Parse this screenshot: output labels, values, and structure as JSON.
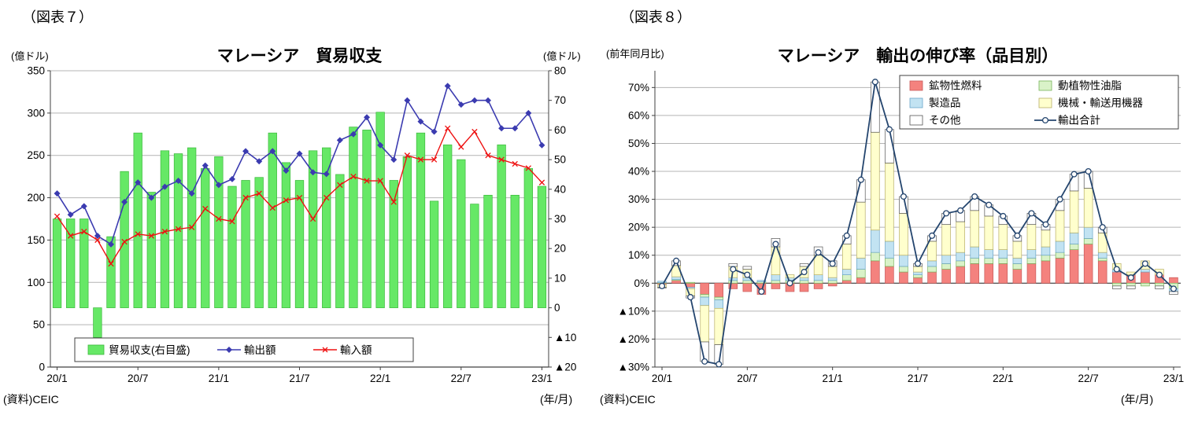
{
  "panels": [
    {
      "figure_label": "（図表７）",
      "left_axis_unit": "(億ドル)",
      "right_axis_unit": "(億ドル)",
      "x_axis_unit": "(年/月)",
      "source": "(資料)CEIC"
    },
    {
      "figure_label": "（図表８）",
      "y_axis_unit": "(前年同月比)",
      "x_axis_unit": "(年/月)",
      "source": "(資料)CEIC"
    }
  ],
  "chart_data": [
    {
      "id": "fig7",
      "type": "bar+line",
      "title": "マレーシア　貿易収支",
      "negative_prefix": "▲",
      "x": [
        "20/1",
        "20/2",
        "20/3",
        "20/4",
        "20/5",
        "20/6",
        "20/7",
        "20/8",
        "20/9",
        "20/10",
        "20/11",
        "20/12",
        "21/1",
        "21/2",
        "21/3",
        "21/4",
        "21/5",
        "21/6",
        "21/7",
        "21/8",
        "21/9",
        "21/10",
        "21/11",
        "21/12",
        "22/1",
        "22/2",
        "22/3",
        "22/4",
        "22/5",
        "22/6",
        "22/7",
        "22/8",
        "22/9",
        "22/10",
        "22/11",
        "22/12",
        "23/1"
      ],
      "x_ticks": [
        "20/1",
        "20/7",
        "21/1",
        "21/7",
        "22/1",
        "22/7",
        "23/1"
      ],
      "x_tick_idx": [
        0,
        6,
        12,
        18,
        24,
        30,
        36
      ],
      "left_ylim": [
        0,
        350
      ],
      "left_yticks": [
        0,
        50,
        100,
        150,
        200,
        250,
        300,
        350
      ],
      "right_ylim": [
        -20,
        80
      ],
      "right_yticks": [
        -20,
        -10,
        0,
        10,
        20,
        30,
        40,
        50,
        60,
        70,
        80
      ],
      "series": [
        {
          "key": "trade_balance",
          "name": "貿易収支(右目盛)",
          "type": "bar",
          "axis": "right",
          "fill": "#66e866",
          "stroke": "#3cb83c",
          "values": [
            30,
            30,
            30,
            -10,
            24,
            46,
            59,
            39,
            53,
            52,
            54,
            47,
            51,
            41,
            43,
            44,
            59,
            49,
            43,
            53,
            54,
            45,
            61,
            60,
            66,
            43,
            51,
            59,
            36,
            55,
            50,
            35,
            38,
            55,
            38,
            47,
            41
          ]
        },
        {
          "key": "exports",
          "name": "輸出額",
          "type": "line",
          "axis": "left",
          "color": "#3b3bb0",
          "marker": "diamond",
          "values": [
            205,
            180,
            190,
            155,
            145,
            195,
            218,
            200,
            213,
            220,
            205,
            238,
            215,
            222,
            255,
            243,
            255,
            232,
            252,
            230,
            228,
            268,
            275,
            295,
            262,
            245,
            315,
            290,
            278,
            332,
            310,
            315,
            315,
            282,
            282,
            300,
            262
          ]
        },
        {
          "key": "imports",
          "name": "輸入額",
          "type": "line",
          "axis": "left",
          "color": "#ee1111",
          "marker": "x",
          "values": [
            178,
            155,
            160,
            150,
            122,
            148,
            157,
            155,
            160,
            163,
            165,
            187,
            175,
            172,
            200,
            205,
            188,
            197,
            200,
            175,
            200,
            215,
            225,
            220,
            220,
            195,
            250,
            245,
            245,
            282,
            260,
            278,
            250,
            245,
            240,
            235,
            218
          ]
        }
      ]
    },
    {
      "id": "fig8",
      "type": "stacked-bar+line",
      "title": "マレーシア　輸出の伸び率（品目別）",
      "negative_prefix": "▲",
      "unit": "%",
      "x": [
        "20/1",
        "20/2",
        "20/3",
        "20/4",
        "20/5",
        "20/6",
        "20/7",
        "20/8",
        "20/9",
        "20/10",
        "20/11",
        "20/12",
        "21/1",
        "21/2",
        "21/3",
        "21/4",
        "21/5",
        "21/6",
        "21/7",
        "21/8",
        "21/9",
        "21/10",
        "21/11",
        "21/12",
        "22/1",
        "22/2",
        "22/3",
        "22/4",
        "22/5",
        "22/6",
        "22/7",
        "22/8",
        "22/9",
        "22/10",
        "22/11",
        "22/12",
        "23/1"
      ],
      "x_ticks": [
        "20/1",
        "20/7",
        "21/1",
        "21/7",
        "22/1",
        "22/7",
        "23/1"
      ],
      "x_tick_idx": [
        0,
        6,
        12,
        18,
        24,
        30,
        36
      ],
      "ylim": [
        -30,
        76
      ],
      "yticks": [
        -30,
        -20,
        -10,
        0,
        10,
        20,
        30,
        40,
        50,
        60,
        70
      ],
      "series": [
        {
          "key": "mineral_fuels",
          "name": "鉱物性燃料",
          "type": "bar",
          "fill": "#f4827e",
          "stroke": "#c85a5a",
          "values": [
            -0.5,
            1,
            -1.5,
            -4,
            -5,
            -2,
            -3,
            -4,
            -2,
            -3,
            -3,
            -2,
            -1,
            1,
            2,
            8,
            6,
            4,
            2,
            4,
            5,
            6,
            7,
            7,
            7,
            5,
            7,
            8,
            9,
            12,
            14,
            8,
            4,
            3,
            4,
            3,
            2
          ]
        },
        {
          "key": "animal_vegetable_oils",
          "name": "動植物性油脂",
          "type": "bar",
          "fill": "#d9f2c8",
          "stroke": "#77b35a",
          "values": [
            0.2,
            0.3,
            0.3,
            -1,
            -1,
            1,
            1,
            0.5,
            1,
            1,
            1,
            1,
            1,
            2,
            3,
            3,
            3,
            2,
            1,
            2,
            2,
            2,
            2,
            2,
            2,
            2,
            2,
            2,
            2,
            2,
            2,
            1,
            -1,
            -1,
            -1,
            -1,
            -2
          ]
        },
        {
          "key": "manufactured_goods",
          "name": "製造品",
          "type": "bar",
          "fill": "#c2e3f2",
          "stroke": "#6aa5c8",
          "values": [
            0.5,
            1,
            -0.5,
            -3,
            -3,
            1,
            1,
            0.5,
            2,
            1,
            1,
            2,
            1,
            2,
            4,
            8,
            6,
            4,
            1,
            2,
            3,
            3,
            4,
            3,
            3,
            2,
            3,
            3,
            4,
            4,
            4,
            2,
            1,
            0,
            1,
            0,
            -1
          ]
        },
        {
          "key": "machinery_transport",
          "name": "機械・輸送用機器",
          "type": "bar",
          "fill": "#ffffcd",
          "stroke": "#b8ae66",
          "values": [
            -1,
            4,
            -2.5,
            -13,
            -13,
            4,
            3,
            0,
            10,
            1,
            4,
            7,
            4,
            9,
            20,
            35,
            28,
            15,
            2,
            7,
            11,
            11,
            13,
            12,
            9,
            6,
            9,
            6,
            11,
            15,
            14,
            7,
            2,
            1,
            3,
            2,
            0
          ]
        },
        {
          "key": "others",
          "name": "その他",
          "type": "bar",
          "fill": "#ffffff",
          "stroke": "#555555",
          "values": [
            -0.2,
            1.7,
            -0.8,
            -7,
            -7,
            1,
            1,
            0,
            3,
            0,
            1,
            3,
            2,
            3,
            8,
            18,
            12,
            6,
            1,
            2,
            4,
            4,
            5,
            4,
            3,
            2,
            4,
            2,
            4,
            6,
            6,
            2,
            -1,
            -1,
            0,
            -1,
            -1
          ]
        },
        {
          "key": "total_exports",
          "name": "輸出合計",
          "type": "line",
          "color": "#24456e",
          "marker": "circle",
          "values": [
            -1,
            8,
            -5,
            -28,
            -29,
            5,
            3,
            -3,
            14,
            0,
            4,
            11,
            7,
            17,
            37,
            72,
            55,
            31,
            7,
            17,
            25,
            26,
            31,
            28,
            24,
            17,
            25,
            21,
            30,
            39,
            40,
            20,
            5,
            2,
            7,
            3,
            -2
          ]
        }
      ]
    }
  ]
}
